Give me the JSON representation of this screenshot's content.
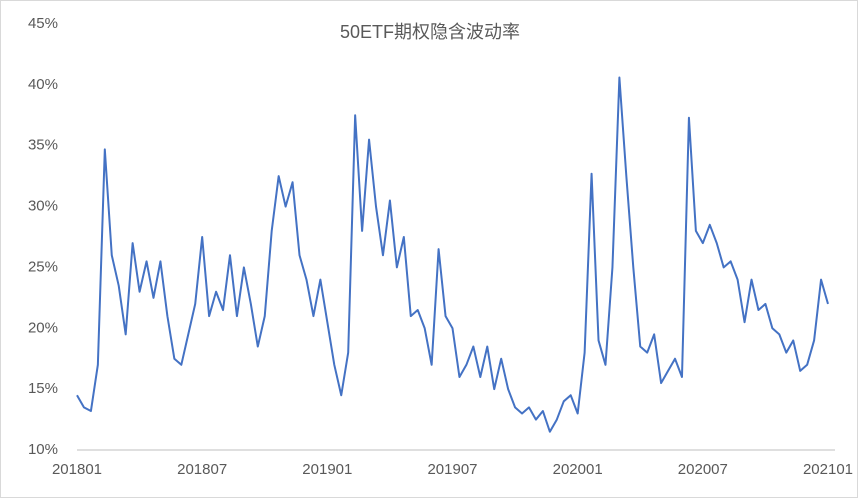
{
  "chart_data": {
    "type": "line",
    "title": "50ETF期权隐含波动率",
    "categories": [
      "201801",
      null,
      null,
      null,
      null,
      null,
      null,
      null,
      null,
      null,
      null,
      null,
      null,
      null,
      null,
      null,
      null,
      null,
      "201807",
      null,
      null,
      null,
      null,
      null,
      null,
      null,
      null,
      null,
      null,
      null,
      null,
      null,
      null,
      null,
      null,
      null,
      "201901",
      null,
      null,
      null,
      null,
      null,
      null,
      null,
      null,
      null,
      null,
      null,
      null,
      null,
      null,
      null,
      null,
      null,
      "201907",
      null,
      null,
      null,
      null,
      null,
      null,
      null,
      null,
      null,
      null,
      null,
      null,
      null,
      null,
      null,
      null,
      null,
      "202001",
      null,
      null,
      null,
      null,
      null,
      null,
      null,
      null,
      null,
      null,
      null,
      null,
      null,
      null,
      null,
      null,
      null,
      "202007",
      null,
      null,
      null,
      null,
      null,
      null,
      null,
      null,
      null,
      null,
      null,
      null,
      null,
      null,
      null,
      null,
      null,
      "202101"
    ],
    "series": [
      {
        "name": "50ETF期权隐含波动率",
        "color": "#4472c4",
        "values": [
          14.5,
          13.5,
          13.2,
          17,
          34.7,
          26,
          23.5,
          19.5,
          27,
          23,
          25.5,
          22.5,
          25.5,
          21,
          17.5,
          17,
          19.5,
          22,
          27.5,
          21,
          23,
          21.5,
          26,
          21,
          25,
          22,
          18.5,
          21,
          28,
          32.5,
          30,
          32,
          26,
          24,
          21,
          24,
          20.5,
          17,
          14.5,
          18,
          37.5,
          28,
          35.5,
          30,
          26,
          30.5,
          25,
          27.5,
          21,
          21.5,
          20,
          17,
          26.5,
          21,
          20,
          16,
          17,
          18.5,
          16,
          18.5,
          15,
          17.5,
          15,
          13.5,
          13,
          13.5,
          12.5,
          13.2,
          11.5,
          12.5,
          14,
          14.5,
          13,
          18,
          32.7,
          19,
          17,
          25,
          40.6,
          32.5,
          25,
          18.5,
          18,
          19.5,
          15.5,
          16.5,
          17.5,
          16,
          37.3,
          28,
          27,
          28.5,
          27,
          25,
          25.5,
          24,
          20.5,
          24,
          21.5,
          22,
          20,
          19.5,
          18,
          19,
          16.5,
          17,
          19,
          24,
          22
        ]
      }
    ],
    "ylim": [
      10,
      45
    ],
    "yticks": [
      {
        "value": 10,
        "label": "10%"
      },
      {
        "value": 15,
        "label": "15%"
      },
      {
        "value": 20,
        "label": "20%"
      },
      {
        "value": 25,
        "label": "25%"
      },
      {
        "value": 30,
        "label": "30%"
      },
      {
        "value": 35,
        "label": "35%"
      },
      {
        "value": 40,
        "label": "40%"
      },
      {
        "value": 45,
        "label": "45%"
      }
    ],
    "grid": false
  }
}
